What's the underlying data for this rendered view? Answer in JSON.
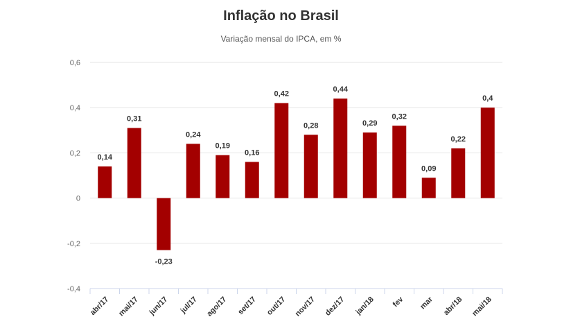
{
  "chart_data": {
    "type": "bar",
    "title": "Inflação no Brasil",
    "subtitle": "Variação mensal do IPCA, em %",
    "categories": [
      "abr/17",
      "mai/17",
      "jun/17",
      "jul/17",
      "ago/17",
      "set/17",
      "out/17",
      "nov/17",
      "dez/17",
      "jan/18",
      "fev",
      "mar",
      "abr/18",
      "mai/18"
    ],
    "values": [
      0.14,
      0.31,
      -0.23,
      0.24,
      0.19,
      0.16,
      0.42,
      0.28,
      0.44,
      0.29,
      0.32,
      0.09,
      0.22,
      0.4
    ],
    "data_labels": [
      "0,14",
      "0,31",
      "-0,23",
      "0,24",
      "0,19",
      "0,16",
      "0,42",
      "0,28",
      "0,44",
      "0,29",
      "0,32",
      "0,09",
      "0,22",
      "0,4"
    ],
    "ylim": [
      -0.4,
      0.6
    ],
    "yticks": [
      0.6,
      0.4,
      0.2,
      0,
      -0.2,
      -0.4
    ],
    "ytick_labels": [
      "0,6",
      "0,4",
      "0,2",
      "0",
      "-0,2",
      "-0,4"
    ],
    "xlabel": "",
    "ylabel": "",
    "grid": true,
    "legend": "none",
    "colors": {
      "bar": "#a30000",
      "grid": "#e6e6e6",
      "axis": "#ccd6eb"
    }
  }
}
